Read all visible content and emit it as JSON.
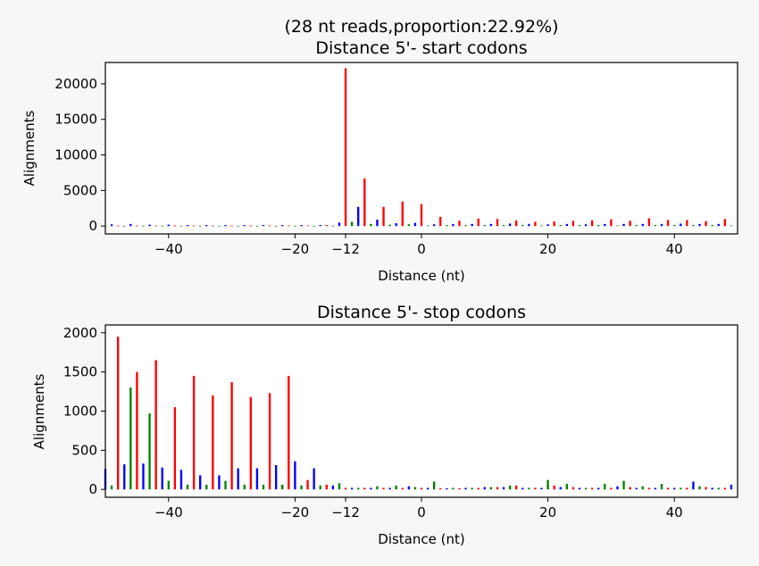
{
  "figure": {
    "title_line1": "(28 nt reads,proportion:22.92%)",
    "title_line2": "Distance 5'- start codons",
    "bg": "#f7f7f7",
    "colors": {
      "frame0": "#ff0000",
      "frame1": "#008000",
      "frame2": "#0000ff"
    }
  },
  "chart_data": [
    {
      "type": "bar",
      "title": "Distance 5'- start codons",
      "xlabel": "Distance (nt)",
      "ylabel": "Alignments",
      "xlim": [
        -50,
        50
      ],
      "ylim": [
        -1100,
        23000
      ],
      "xticks": [
        -40,
        -20,
        -12,
        0,
        20,
        40
      ],
      "yticks": [
        0,
        5000,
        10000,
        15000,
        20000
      ],
      "series": [
        {
          "color": "#ff0000",
          "points": [
            [
              -12,
              22200
            ],
            [
              -9,
              6700
            ],
            [
              -6,
              2700
            ],
            [
              -3,
              3450
            ],
            [
              0,
              3100
            ],
            [
              3,
              1300
            ],
            [
              6,
              750
            ],
            [
              9,
              1050
            ],
            [
              12,
              1000
            ],
            [
              15,
              800
            ],
            [
              18,
              600
            ],
            [
              21,
              650
            ],
            [
              24,
              750
            ],
            [
              27,
              800
            ],
            [
              30,
              950
            ],
            [
              33,
              750
            ],
            [
              36,
              1100
            ],
            [
              39,
              850
            ],
            [
              42,
              850
            ],
            [
              45,
              700
            ],
            [
              48,
              1000
            ],
            [
              -48,
              80
            ],
            [
              -45,
              80
            ],
            [
              -42,
              80
            ],
            [
              -39,
              80
            ],
            [
              -36,
              80
            ],
            [
              -33,
              80
            ],
            [
              -30,
              80
            ],
            [
              -27,
              80
            ],
            [
              -24,
              100
            ],
            [
              -21,
              100
            ],
            [
              -18,
              100
            ],
            [
              -15,
              150
            ]
          ]
        },
        {
          "color": "#008000",
          "points": [
            [
              -11,
              600
            ],
            [
              -8,
              300
            ],
            [
              -5,
              200
            ],
            [
              -2,
              250
            ],
            [
              1,
              100
            ],
            [
              4,
              150
            ],
            [
              7,
              150
            ],
            [
              10,
              150
            ],
            [
              13,
              150
            ],
            [
              16,
              150
            ],
            [
              19,
              100
            ],
            [
              22,
              150
            ],
            [
              25,
              150
            ],
            [
              28,
              150
            ],
            [
              31,
              100
            ],
            [
              34,
              150
            ],
            [
              37,
              150
            ],
            [
              40,
              150
            ],
            [
              43,
              150
            ],
            [
              46,
              150
            ],
            [
              49,
              100
            ],
            [
              -47,
              50
            ],
            [
              -44,
              50
            ],
            [
              -41,
              50
            ],
            [
              -38,
              50
            ],
            [
              -35,
              50
            ],
            [
              -32,
              50
            ],
            [
              -29,
              50
            ],
            [
              -26,
              50
            ],
            [
              -23,
              50
            ],
            [
              -20,
              50
            ],
            [
              -17,
              50
            ],
            [
              -14,
              50
            ]
          ]
        },
        {
          "color": "#0000ff",
          "points": [
            [
              -13,
              500
            ],
            [
              -10,
              2700
            ],
            [
              -7,
              900
            ],
            [
              -4,
              400
            ],
            [
              -1,
              450
            ],
            [
              2,
              250
            ],
            [
              5,
              300
            ],
            [
              8,
              300
            ],
            [
              11,
              300
            ],
            [
              14,
              350
            ],
            [
              17,
              300
            ],
            [
              20,
              250
            ],
            [
              23,
              300
            ],
            [
              26,
              250
            ],
            [
              29,
              300
            ],
            [
              32,
              300
            ],
            [
              35,
              300
            ],
            [
              38,
              300
            ],
            [
              41,
              350
            ],
            [
              44,
              300
            ],
            [
              47,
              300
            ],
            [
              -49,
              250
            ],
            [
              -46,
              300
            ],
            [
              -43,
              200
            ],
            [
              -40,
              200
            ],
            [
              -37,
              150
            ],
            [
              -34,
              150
            ],
            [
              -31,
              150
            ],
            [
              -28,
              150
            ],
            [
              -25,
              150
            ],
            [
              -22,
              150
            ],
            [
              -19,
              150
            ],
            [
              -16,
              150
            ]
          ]
        }
      ]
    },
    {
      "type": "bar",
      "title": "Distance 5'- stop codons",
      "xlabel": "Distance (nt)",
      "ylabel": "Alignments",
      "xlim": [
        -50,
        50
      ],
      "ylim": [
        -100,
        2100
      ],
      "xticks": [
        -40,
        -20,
        -12,
        0,
        20,
        40
      ],
      "yticks": [
        0,
        500,
        1000,
        1500,
        2000
      ],
      "series": [
        {
          "color": "#ff0000",
          "points": [
            [
              -48,
              1950
            ],
            [
              -45,
              1500
            ],
            [
              -42,
              1650
            ],
            [
              -39,
              1050
            ],
            [
              -36,
              1450
            ],
            [
              -33,
              1200
            ],
            [
              -30,
              1370
            ],
            [
              -27,
              1180
            ],
            [
              -24,
              1230
            ],
            [
              -21,
              1450
            ],
            [
              -18,
              120
            ],
            [
              -15,
              60
            ],
            [
              -12,
              20
            ],
            [
              -9,
              20
            ],
            [
              -6,
              20
            ],
            [
              -3,
              20
            ],
            [
              0,
              20
            ],
            [
              3,
              15
            ],
            [
              6,
              15
            ],
            [
              9,
              20
            ],
            [
              12,
              30
            ],
            [
              15,
              50
            ],
            [
              18,
              20
            ],
            [
              21,
              50
            ],
            [
              24,
              30
            ],
            [
              27,
              20
            ],
            [
              30,
              20
            ],
            [
              33,
              30
            ],
            [
              36,
              20
            ],
            [
              39,
              20
            ],
            [
              42,
              20
            ],
            [
              45,
              30
            ],
            [
              48,
              20
            ]
          ]
        },
        {
          "color": "#008000",
          "points": [
            [
              -49,
              50
            ],
            [
              -46,
              1300
            ],
            [
              -43,
              970
            ],
            [
              -40,
              110
            ],
            [
              -37,
              60
            ],
            [
              -34,
              60
            ],
            [
              -31,
              110
            ],
            [
              -28,
              60
            ],
            [
              -25,
              60
            ],
            [
              -22,
              60
            ],
            [
              -19,
              50
            ],
            [
              -16,
              50
            ],
            [
              -13,
              80
            ],
            [
              -10,
              20
            ],
            [
              -7,
              40
            ],
            [
              -4,
              50
            ],
            [
              -1,
              30
            ],
            [
              2,
              100
            ],
            [
              5,
              20
            ],
            [
              8,
              20
            ],
            [
              11,
              30
            ],
            [
              14,
              50
            ],
            [
              17,
              20
            ],
            [
              20,
              120
            ],
            [
              23,
              70
            ],
            [
              26,
              20
            ],
            [
              29,
              70
            ],
            [
              32,
              110
            ],
            [
              35,
              40
            ],
            [
              38,
              70
            ],
            [
              41,
              20
            ],
            [
              44,
              40
            ],
            [
              47,
              20
            ]
          ]
        },
        {
          "color": "#0000ff",
          "points": [
            [
              -50,
              260
            ],
            [
              -47,
              320
            ],
            [
              -44,
              330
            ],
            [
              -41,
              280
            ],
            [
              -38,
              250
            ],
            [
              -35,
              180
            ],
            [
              -32,
              180
            ],
            [
              -29,
              270
            ],
            [
              -26,
              270
            ],
            [
              -23,
              310
            ],
            [
              -20,
              360
            ],
            [
              -17,
              270
            ],
            [
              -14,
              50
            ],
            [
              -11,
              20
            ],
            [
              -8,
              20
            ],
            [
              -5,
              20
            ],
            [
              -2,
              40
            ],
            [
              1,
              20
            ],
            [
              4,
              15
            ],
            [
              7,
              20
            ],
            [
              10,
              30
            ],
            [
              13,
              30
            ],
            [
              16,
              20
            ],
            [
              19,
              20
            ],
            [
              22,
              30
            ],
            [
              25,
              20
            ],
            [
              28,
              20
            ],
            [
              31,
              40
            ],
            [
              34,
              20
            ],
            [
              37,
              20
            ],
            [
              40,
              20
            ],
            [
              43,
              100
            ],
            [
              46,
              20
            ],
            [
              49,
              60
            ]
          ]
        }
      ]
    }
  ]
}
